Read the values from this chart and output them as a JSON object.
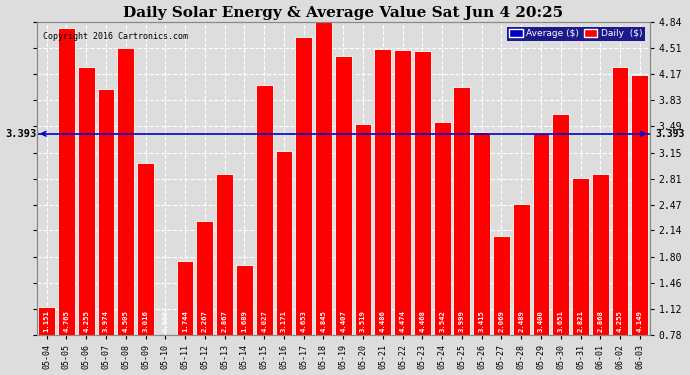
{
  "title": "Daily Solar Energy & Average Value Sat Jun 4 20:25",
  "copyright": "Copyright 2016 Cartronics.com",
  "average_value": 3.393,
  "bar_color": "#FF0000",
  "average_line_color": "#0000CD",
  "background_color": "#DDDDDD",
  "plot_bg_color": "#DDDDDD",
  "legend_avg_bg": "#0000CD",
  "legend_daily_bg": "#FF0000",
  "categories": [
    "05-04",
    "05-05",
    "05-06",
    "05-07",
    "05-08",
    "05-09",
    "05-10",
    "05-11",
    "05-12",
    "05-13",
    "05-14",
    "05-15",
    "05-16",
    "05-17",
    "05-18",
    "05-19",
    "05-20",
    "05-21",
    "05-22",
    "05-23",
    "05-24",
    "05-25",
    "05-26",
    "05-27",
    "05-28",
    "05-29",
    "05-30",
    "05-31",
    "06-01",
    "06-02",
    "06-03"
  ],
  "values": [
    1.151,
    4.765,
    4.255,
    3.974,
    4.505,
    3.016,
    0.0,
    1.744,
    2.267,
    2.867,
    1.689,
    4.027,
    3.171,
    4.653,
    4.845,
    4.407,
    3.519,
    4.486,
    4.474,
    4.468,
    3.542,
    3.999,
    3.415,
    2.069,
    2.489,
    3.4,
    3.651,
    2.821,
    2.868,
    4.255,
    4.149
  ],
  "ylim": [
    0.78,
    4.84
  ],
  "yticks": [
    0.78,
    1.12,
    1.46,
    1.8,
    2.14,
    2.47,
    2.81,
    3.15,
    3.49,
    3.83,
    4.17,
    4.51,
    4.84
  ],
  "grid_color": "#FFFFFF",
  "bar_edge_color": "#FFFFFF",
  "label_font_size": 5.5,
  "tick_font_size": 7.0,
  "title_font_size": 11
}
